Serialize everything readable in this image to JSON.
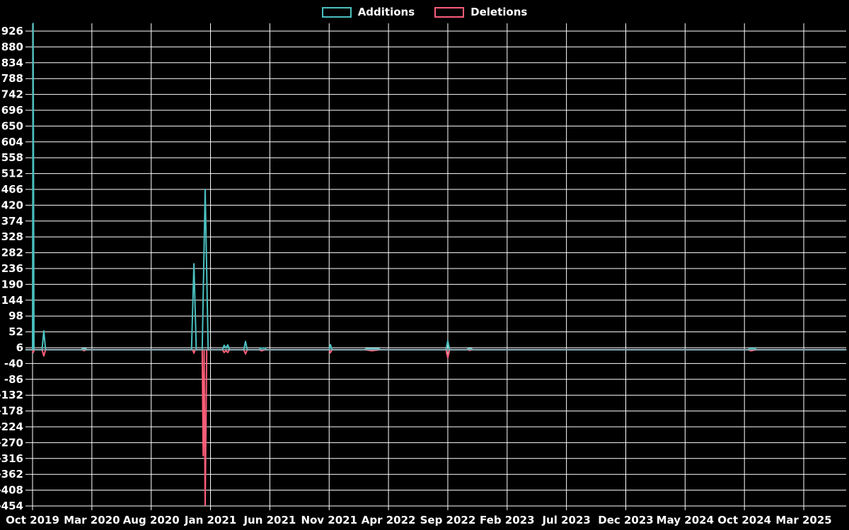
{
  "legend": {
    "items": [
      {
        "label": "Additions",
        "color": "#4BC0C0"
      },
      {
        "label": "Deletions",
        "color": "#FB5D78"
      }
    ]
  },
  "chart_data": {
    "type": "line",
    "title": "",
    "background": "#000000",
    "grid": {
      "visible": true,
      "color": "#FFFFFF"
    },
    "legend_position": "top-center",
    "x_axis": {
      "start_month": "2019-10",
      "months_per_tick": 5,
      "tick_labels": [
        "Oct 2019",
        "Mar 2020",
        "Aug 2020",
        "Jan 2021",
        "Jun 2021",
        "Nov 2021",
        "Apr 2022",
        "Sep 2022",
        "Feb 2023",
        "Jul 2023",
        "Dec 2023",
        "May 2024",
        "Oct 2024",
        "Mar 2025"
      ]
    },
    "y_axis": {
      "min": -454,
      "max": 926,
      "step": 46,
      "ticks": [
        926,
        880,
        834,
        788,
        742,
        696,
        650,
        604,
        558,
        512,
        466,
        420,
        374,
        328,
        282,
        236,
        190,
        144,
        98,
        52,
        6,
        -40,
        -86,
        -132,
        -178,
        -224,
        -270,
        -316,
        -362,
        -408,
        -454
      ]
    },
    "x_unit": "months_since_2019-10",
    "overlap_baseline_color": "#8FA7B2",
    "series": [
      {
        "name": "Additions",
        "color": "#4BC0C0",
        "points": [
          [
            -0.6,
            0
          ],
          [
            0,
            0
          ],
          [
            0.05,
            948
          ],
          [
            0.12,
            0
          ],
          [
            0.8,
            0
          ],
          [
            0.95,
            55
          ],
          [
            1.1,
            0
          ],
          [
            4.1,
            0
          ],
          [
            4.2,
            3
          ],
          [
            4.5,
            3
          ],
          [
            4.6,
            0
          ],
          [
            13.4,
            0
          ],
          [
            13.6,
            250
          ],
          [
            13.8,
            0
          ],
          [
            14.3,
            0
          ],
          [
            14.55,
            466
          ],
          [
            14.8,
            0
          ],
          [
            16.0,
            0
          ],
          [
            16.15,
            13
          ],
          [
            16.3,
            5
          ],
          [
            16.45,
            14
          ],
          [
            16.6,
            0
          ],
          [
            17.8,
            0
          ],
          [
            17.95,
            24
          ],
          [
            18.1,
            0
          ],
          [
            19.1,
            0
          ],
          [
            19.2,
            5
          ],
          [
            19.6,
            5
          ],
          [
            19.7,
            0
          ],
          [
            25.0,
            0
          ],
          [
            25.1,
            15
          ],
          [
            25.25,
            0
          ],
          [
            28.0,
            0
          ],
          [
            28.1,
            3
          ],
          [
            29.2,
            3
          ],
          [
            29.3,
            0
          ],
          [
            34.85,
            0
          ],
          [
            35.0,
            26
          ],
          [
            35.15,
            0
          ],
          [
            36.6,
            0
          ],
          [
            36.7,
            3
          ],
          [
            37.0,
            3
          ],
          [
            37.1,
            0
          ],
          [
            60.3,
            0
          ],
          [
            60.45,
            4
          ],
          [
            60.9,
            4
          ],
          [
            61.0,
            0
          ],
          [
            68.6,
            0
          ]
        ]
      },
      {
        "name": "Deletions",
        "color": "#FB5D78",
        "points": [
          [
            -0.6,
            0
          ],
          [
            0,
            0
          ],
          [
            0.06,
            -8
          ],
          [
            0.15,
            0
          ],
          [
            0.8,
            0
          ],
          [
            0.95,
            -18
          ],
          [
            1.1,
            0
          ],
          [
            4.2,
            0
          ],
          [
            4.35,
            -3
          ],
          [
            4.5,
            0
          ],
          [
            13.5,
            0
          ],
          [
            13.6,
            -10
          ],
          [
            13.7,
            0
          ],
          [
            14.3,
            0
          ],
          [
            14.38,
            -308
          ],
          [
            14.46,
            0
          ],
          [
            14.55,
            -452
          ],
          [
            14.68,
            0
          ],
          [
            16.0,
            0
          ],
          [
            16.15,
            -8
          ],
          [
            16.3,
            -3
          ],
          [
            16.45,
            -8
          ],
          [
            16.6,
            0
          ],
          [
            17.8,
            0
          ],
          [
            17.95,
            -12
          ],
          [
            18.1,
            0
          ],
          [
            19.1,
            0
          ],
          [
            19.3,
            -3
          ],
          [
            19.6,
            0
          ],
          [
            25.0,
            0
          ],
          [
            25.1,
            -9
          ],
          [
            25.25,
            0
          ],
          [
            28.0,
            0
          ],
          [
            28.6,
            -3
          ],
          [
            29.3,
            0
          ],
          [
            34.85,
            0
          ],
          [
            35.0,
            -24
          ],
          [
            35.15,
            0
          ],
          [
            36.7,
            0
          ],
          [
            36.85,
            -2
          ],
          [
            37.0,
            0
          ],
          [
            60.3,
            0
          ],
          [
            60.55,
            -3
          ],
          [
            61.0,
            0
          ],
          [
            68.6,
            0
          ]
        ]
      }
    ]
  }
}
